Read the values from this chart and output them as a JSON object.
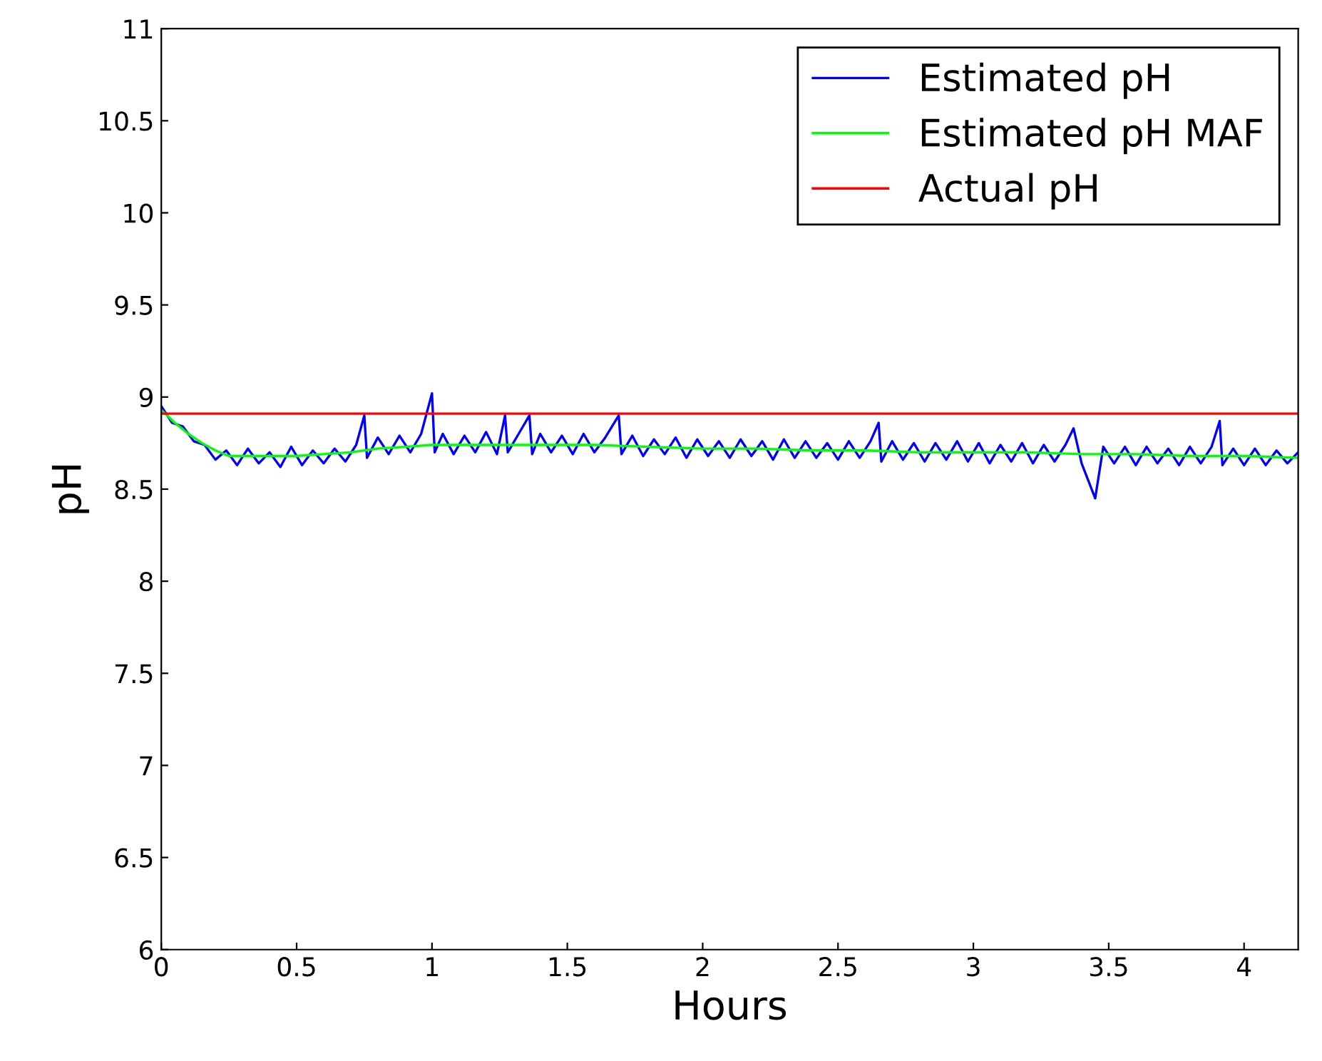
{
  "chart_data": {
    "type": "line",
    "xlabel": "Hours",
    "ylabel": "pH",
    "xlim": [
      0,
      4.2
    ],
    "xticks": [
      0,
      0.5,
      1,
      1.5,
      2,
      2.5,
      3,
      3.5,
      4
    ],
    "ylim": [
      6,
      11
    ],
    "yticks": [
      6,
      6.5,
      7,
      7.5,
      8,
      8.5,
      9,
      9.5,
      10,
      10.5,
      11
    ],
    "grid": false,
    "legend": "top right",
    "series": [
      {
        "name": "Estimated pH",
        "color": "#0000ff",
        "x": [
          0.0,
          0.04,
          0.08,
          0.12,
          0.16,
          0.2,
          0.24,
          0.28,
          0.32,
          0.36,
          0.4,
          0.44,
          0.48,
          0.52,
          0.56,
          0.6,
          0.64,
          0.68,
          0.72,
          0.75,
          0.76,
          0.8,
          0.84,
          0.88,
          0.92,
          0.96,
          1.0,
          1.01,
          1.04,
          1.08,
          1.12,
          1.16,
          1.2,
          1.24,
          1.27,
          1.28,
          1.32,
          1.36,
          1.37,
          1.4,
          1.44,
          1.48,
          1.52,
          1.56,
          1.6,
          1.64,
          1.69,
          1.7,
          1.74,
          1.78,
          1.82,
          1.86,
          1.9,
          1.94,
          1.98,
          2.02,
          2.06,
          2.1,
          2.14,
          2.18,
          2.22,
          2.26,
          2.3,
          2.34,
          2.38,
          2.42,
          2.46,
          2.5,
          2.54,
          2.58,
          2.62,
          2.65,
          2.66,
          2.7,
          2.74,
          2.78,
          2.82,
          2.86,
          2.9,
          2.94,
          2.98,
          3.02,
          3.06,
          3.1,
          3.14,
          3.18,
          3.22,
          3.26,
          3.3,
          3.34,
          3.37,
          3.4,
          3.45,
          3.48,
          3.52,
          3.56,
          3.6,
          3.64,
          3.68,
          3.72,
          3.76,
          3.8,
          3.84,
          3.88,
          3.91,
          3.92,
          3.96,
          4.0,
          4.04,
          4.08,
          4.12,
          4.16,
          4.2
        ],
        "values": [
          8.95,
          8.86,
          8.84,
          8.76,
          8.74,
          8.66,
          8.71,
          8.63,
          8.72,
          8.64,
          8.7,
          8.62,
          8.73,
          8.63,
          8.71,
          8.64,
          8.72,
          8.65,
          8.74,
          8.9,
          8.67,
          8.78,
          8.69,
          8.79,
          8.7,
          8.8,
          9.02,
          8.7,
          8.8,
          8.69,
          8.79,
          8.7,
          8.81,
          8.69,
          8.9,
          8.7,
          8.8,
          8.9,
          8.69,
          8.8,
          8.7,
          8.79,
          8.69,
          8.8,
          8.7,
          8.78,
          8.9,
          8.69,
          8.79,
          8.68,
          8.77,
          8.69,
          8.78,
          8.67,
          8.77,
          8.68,
          8.76,
          8.67,
          8.77,
          8.68,
          8.76,
          8.66,
          8.77,
          8.67,
          8.76,
          8.67,
          8.75,
          8.66,
          8.76,
          8.67,
          8.76,
          8.86,
          8.65,
          8.76,
          8.66,
          8.75,
          8.65,
          8.75,
          8.66,
          8.76,
          8.65,
          8.75,
          8.64,
          8.74,
          8.65,
          8.75,
          8.64,
          8.74,
          8.65,
          8.74,
          8.83,
          8.64,
          8.45,
          8.73,
          8.64,
          8.73,
          8.63,
          8.73,
          8.64,
          8.72,
          8.63,
          8.73,
          8.64,
          8.73,
          8.87,
          8.63,
          8.72,
          8.63,
          8.72,
          8.63,
          8.71,
          8.64,
          8.7
        ]
      },
      {
        "name": "Estimated pH MAF",
        "color": "#00ff00",
        "x": [
          0,
          0.05,
          0.1,
          0.15,
          0.2,
          0.25,
          0.3,
          0.4,
          0.5,
          0.6,
          0.7,
          0.8,
          0.9,
          1.0,
          1.2,
          1.4,
          1.6,
          1.8,
          2.0,
          2.2,
          2.4,
          2.6,
          2.8,
          3.0,
          3.2,
          3.4,
          3.6,
          3.8,
          4.0,
          4.2
        ],
        "values": [
          8.93,
          8.86,
          8.8,
          8.75,
          8.71,
          8.68,
          8.68,
          8.68,
          8.68,
          8.69,
          8.7,
          8.72,
          8.73,
          8.74,
          8.74,
          8.74,
          8.74,
          8.73,
          8.72,
          8.72,
          8.71,
          8.71,
          8.7,
          8.7,
          8.7,
          8.69,
          8.69,
          8.68,
          8.68,
          8.67
        ]
      },
      {
        "name": "Actual pH",
        "color": "#ff0000",
        "x": [
          0,
          4.2
        ],
        "values": [
          8.91,
          8.91
        ]
      }
    ]
  }
}
